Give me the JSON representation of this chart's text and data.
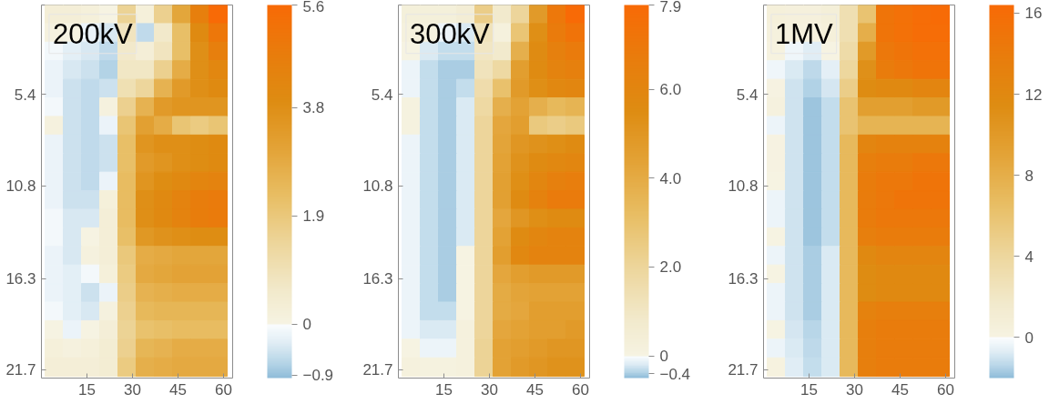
{
  "chart_data": [
    {
      "type": "heatmap",
      "title": "200kV",
      "x": [
        4.2,
        10.2,
        16.2,
        22.2,
        28.2,
        34.2,
        40.2,
        46.2,
        52.2,
        58.2
      ],
      "y": [
        0.65,
        1.75,
        2.85,
        3.95,
        5.05,
        6.15,
        7.25,
        8.35,
        9.45,
        10.55,
        11.65,
        12.75,
        13.85,
        14.95,
        16.05,
        17.15,
        18.25,
        19.35,
        20.45,
        21.55
      ],
      "xlim": [
        0,
        63
      ],
      "xticks": [
        15,
        30,
        45,
        60
      ],
      "ylim": [
        22.2,
        0.1
      ],
      "yticks": [
        5.4,
        10.8,
        16.3,
        21.7
      ],
      "clim": [
        -0.95,
        5.6
      ],
      "cticks": [
        {
          "value": -0.9,
          "label": "−0.9"
        },
        0,
        1.9,
        3.8,
        5.6
      ],
      "cells": [
        [
          0.3,
          0.3,
          0.2,
          0.0,
          1.5,
          0.2,
          1.6,
          3.0,
          4.6,
          5.6
        ],
        [
          0.1,
          0.0,
          -0.2,
          -0.4,
          0.8,
          -0.6,
          0.6,
          2.2,
          4.0,
          5.0
        ],
        [
          -0.1,
          -0.3,
          -0.4,
          -0.6,
          0.6,
          0.3,
          0.8,
          2.2,
          3.8,
          4.6
        ],
        [
          -0.2,
          -0.4,
          -0.5,
          -0.7,
          0.7,
          0.7,
          1.6,
          2.8,
          3.8,
          4.2
        ],
        [
          -0.2,
          -0.5,
          -0.6,
          -0.5,
          1.0,
          1.4,
          2.6,
          3.4,
          3.8,
          4.0
        ],
        [
          -0.1,
          -0.5,
          -0.6,
          0.1,
          1.6,
          2.6,
          3.4,
          3.6,
          3.6,
          3.6
        ],
        [
          0.1,
          -0.5,
          -0.6,
          -0.2,
          2.0,
          3.2,
          2.8,
          2.0,
          1.8,
          2.0
        ],
        [
          -0.2,
          -0.5,
          -0.6,
          -0.5,
          2.2,
          3.6,
          3.8,
          3.8,
          3.9,
          4.0
        ],
        [
          -0.2,
          -0.5,
          -0.6,
          -0.5,
          2.2,
          3.4,
          3.6,
          3.8,
          3.9,
          4.0
        ],
        [
          -0.2,
          -0.5,
          -0.6,
          -0.2,
          2.3,
          3.6,
          3.9,
          4.1,
          4.3,
          4.4
        ],
        [
          -0.2,
          -0.5,
          -0.5,
          0.2,
          2.3,
          3.8,
          4.1,
          4.4,
          4.7,
          4.8
        ],
        [
          -0.1,
          -0.4,
          -0.4,
          0.3,
          2.3,
          3.8,
          4.1,
          4.4,
          4.7,
          4.8
        ],
        [
          -0.1,
          -0.4,
          0.0,
          0.3,
          2.2,
          3.5,
          3.7,
          3.8,
          3.9,
          3.9
        ],
        [
          -0.2,
          -0.4,
          0.1,
          0.3,
          1.9,
          2.8,
          2.9,
          3.0,
          3.0,
          3.0
        ],
        [
          -0.2,
          -0.3,
          -0.1,
          0.2,
          1.8,
          2.9,
          3.0,
          3.1,
          3.1,
          3.1
        ],
        [
          -0.2,
          -0.3,
          -0.5,
          -0.2,
          1.7,
          2.6,
          2.7,
          2.8,
          2.8,
          2.8
        ],
        [
          -0.1,
          -0.3,
          -0.4,
          0.1,
          1.6,
          2.4,
          2.5,
          2.5,
          2.5,
          2.5
        ],
        [
          0.0,
          -0.2,
          0.0,
          0.3,
          1.5,
          2.1,
          2.2,
          2.3,
          2.3,
          2.3
        ],
        [
          0.2,
          0.1,
          0.2,
          0.4,
          1.6,
          2.5,
          2.6,
          2.8,
          2.8,
          2.8
        ],
        [
          0.3,
          0.3,
          0.3,
          0.4,
          1.8,
          2.7,
          2.8,
          2.9,
          2.9,
          2.9
        ]
      ]
    },
    {
      "type": "heatmap",
      "title": "300kV",
      "x": [
        4.2,
        10.2,
        16.2,
        22.2,
        28.2,
        34.2,
        40.2,
        46.2,
        52.2,
        58.2
      ],
      "y": [
        0.65,
        1.75,
        2.85,
        3.95,
        5.05,
        6.15,
        7.25,
        8.35,
        9.45,
        10.55,
        11.65,
        12.75,
        13.85,
        14.95,
        16.05,
        17.15,
        18.25,
        19.35,
        20.45,
        21.55
      ],
      "xlim": [
        0,
        63
      ],
      "xticks": [
        15,
        30,
        45,
        60
      ],
      "ylim": [
        22.2,
        0.1
      ],
      "yticks": [
        5.4,
        10.8,
        16.3,
        21.7
      ],
      "clim": [
        -0.5,
        7.9
      ],
      "cticks": [
        {
          "value": -0.4,
          "label": "−0.4"
        },
        0,
        {
          "value": 2,
          "label": "2.0"
        },
        {
          "value": 4,
          "label": "4.0"
        },
        {
          "value": 6,
          "label": "6.0"
        },
        7.9
      ],
      "cells": [
        [
          0.3,
          0.3,
          0.3,
          0.5,
          2.4,
          0.8,
          2.0,
          4.8,
          7.0,
          7.9
        ],
        [
          0.2,
          0.1,
          -0.1,
          -0.2,
          1.2,
          0.2,
          2.8,
          5.4,
          6.8,
          7.3
        ],
        [
          0.0,
          -0.2,
          -0.3,
          -0.3,
          1.0,
          0.8,
          3.8,
          5.6,
          6.4,
          6.8
        ],
        [
          -0.1,
          -0.3,
          -0.4,
          -0.4,
          1.2,
          1.8,
          4.6,
          5.6,
          6.2,
          6.4
        ],
        [
          -0.1,
          -0.3,
          -0.4,
          -0.3,
          1.6,
          3.0,
          4.8,
          5.4,
          5.8,
          6.0
        ],
        [
          0.1,
          -0.3,
          -0.4,
          -0.2,
          1.8,
          3.8,
          4.4,
          3.8,
          3.4,
          3.6
        ],
        [
          0.1,
          -0.3,
          -0.4,
          -0.2,
          2.0,
          4.2,
          4.6,
          2.6,
          2.4,
          2.6
        ],
        [
          -0.1,
          -0.3,
          -0.4,
          -0.2,
          2.0,
          4.3,
          5.0,
          5.2,
          5.4,
          5.6
        ],
        [
          -0.1,
          -0.3,
          -0.4,
          -0.2,
          2.0,
          4.4,
          5.2,
          5.6,
          5.8,
          6.0
        ],
        [
          -0.1,
          -0.3,
          -0.4,
          -0.2,
          2.0,
          4.5,
          5.4,
          6.0,
          6.4,
          6.6
        ],
        [
          -0.1,
          -0.3,
          -0.4,
          -0.2,
          2.0,
          4.5,
          5.6,
          6.3,
          6.8,
          6.8
        ],
        [
          -0.1,
          -0.3,
          -0.4,
          -0.2,
          2.0,
          4.2,
          5.0,
          5.4,
          5.6,
          5.6
        ],
        [
          -0.1,
          -0.3,
          -0.4,
          -0.2,
          2.0,
          4.4,
          5.6,
          6.0,
          6.2,
          6.2
        ],
        [
          -0.1,
          -0.3,
          -0.4,
          0.0,
          2.0,
          4.6,
          5.8,
          6.2,
          6.2,
          6.2
        ],
        [
          -0.1,
          -0.3,
          -0.4,
          0.0,
          2.0,
          4.2,
          4.6,
          4.8,
          4.8,
          4.8
        ],
        [
          -0.1,
          -0.3,
          -0.4,
          0.0,
          2.0,
          4.0,
          4.3,
          4.4,
          4.4,
          4.4
        ],
        [
          -0.1,
          -0.3,
          -0.3,
          0.0,
          2.0,
          4.0,
          4.2,
          4.6,
          4.6,
          4.6
        ],
        [
          -0.1,
          -0.2,
          -0.2,
          0.2,
          2.0,
          4.2,
          4.4,
          4.6,
          4.6,
          4.8
        ],
        [
          0.0,
          -0.1,
          -0.1,
          0.2,
          2.1,
          4.4,
          4.6,
          4.8,
          5.0,
          5.0
        ],
        [
          0.2,
          0.1,
          0.1,
          0.2,
          2.1,
          4.4,
          4.8,
          5.0,
          5.2,
          5.2
        ]
      ]
    },
    {
      "type": "heatmap",
      "title": "1MV",
      "x": [
        4.2,
        10.2,
        16.2,
        22.2,
        28.2,
        34.2,
        40.2,
        46.2,
        52.2,
        58.2
      ],
      "y": [
        0.65,
        1.75,
        2.85,
        3.95,
        5.05,
        6.15,
        7.25,
        8.35,
        9.45,
        10.55,
        11.65,
        12.75,
        13.85,
        14.95,
        16.05,
        17.15,
        18.25,
        19.35,
        20.45,
        21.55
      ],
      "xlim": [
        0,
        63
      ],
      "xticks": [
        15,
        30,
        45,
        60
      ],
      "ylim": [
        22.2,
        0.1
      ],
      "yticks": [
        5.4,
        10.8,
        16.3,
        21.7
      ],
      "clim": [
        -2,
        16.4
      ],
      "cticks": [
        0,
        4,
        8,
        12,
        16
      ],
      "cells": [
        [
          0.6,
          0.5,
          0.5,
          0.8,
          3.0,
          6.0,
          15.0,
          15.5,
          16.0,
          16.2
        ],
        [
          0.4,
          0.3,
          0.2,
          0.6,
          3.0,
          8.0,
          15.0,
          15.5,
          16.0,
          16.0
        ],
        [
          0.2,
          -0.3,
          -0.7,
          0.0,
          3.5,
          10.0,
          14.5,
          15.0,
          15.5,
          15.5
        ],
        [
          -0.3,
          -0.8,
          -1.3,
          -0.6,
          4.0,
          11.0,
          14.0,
          14.5,
          15.0,
          15.0
        ],
        [
          0.1,
          -1.0,
          -1.5,
          -0.9,
          5.0,
          11.5,
          12.0,
          12.0,
          12.5,
          12.5
        ],
        [
          0.3,
          -1.0,
          -1.8,
          -1.2,
          6.0,
          9.5,
          9.5,
          9.5,
          10.0,
          10.0
        ],
        [
          -0.4,
          -1.0,
          -1.8,
          -1.2,
          6.0,
          7.5,
          7.5,
          7.5,
          7.5,
          7.5
        ],
        [
          0.1,
          -1.0,
          -1.8,
          -1.2,
          7.0,
          12.5,
          13.0,
          13.0,
          13.0,
          13.0
        ],
        [
          0.1,
          -1.0,
          -1.8,
          -1.2,
          7.0,
          13.5,
          14.0,
          14.0,
          14.5,
          14.5
        ],
        [
          0.0,
          -1.0,
          -1.8,
          -1.2,
          7.0,
          14.0,
          14.5,
          14.5,
          15.0,
          15.0
        ],
        [
          -0.4,
          -1.0,
          -1.8,
          -1.2,
          7.0,
          14.0,
          14.5,
          15.0,
          15.0,
          15.0
        ],
        [
          -0.4,
          -1.0,
          -1.8,
          -1.2,
          7.0,
          14.0,
          14.5,
          14.5,
          14.5,
          14.5
        ],
        [
          0.0,
          -1.0,
          -1.8,
          -1.2,
          7.0,
          13.5,
          14.0,
          14.0,
          14.0,
          14.0
        ],
        [
          -0.4,
          -1.0,
          -1.6,
          -0.8,
          7.0,
          12.0,
          12.5,
          12.5,
          12.5,
          12.5
        ],
        [
          0.0,
          -1.0,
          -1.6,
          -0.8,
          7.0,
          11.5,
          12.0,
          12.0,
          12.0,
          12.0
        ],
        [
          -0.4,
          -1.0,
          -1.6,
          -0.8,
          7.0,
          11.5,
          12.0,
          12.0,
          12.0,
          12.0
        ],
        [
          -0.4,
          -1.0,
          -1.6,
          -0.8,
          7.0,
          13.0,
          13.5,
          13.5,
          13.5,
          13.5
        ],
        [
          0.0,
          -0.9,
          -1.4,
          -0.8,
          7.0,
          13.5,
          14.0,
          14.0,
          14.0,
          14.0
        ],
        [
          -0.4,
          -0.8,
          -1.3,
          -0.8,
          7.0,
          13.5,
          14.0,
          14.0,
          14.0,
          14.0
        ],
        [
          0.2,
          -0.7,
          -1.2,
          -0.8,
          7.0,
          13.5,
          14.0,
          14.0,
          14.0,
          14.0
        ]
      ]
    }
  ]
}
